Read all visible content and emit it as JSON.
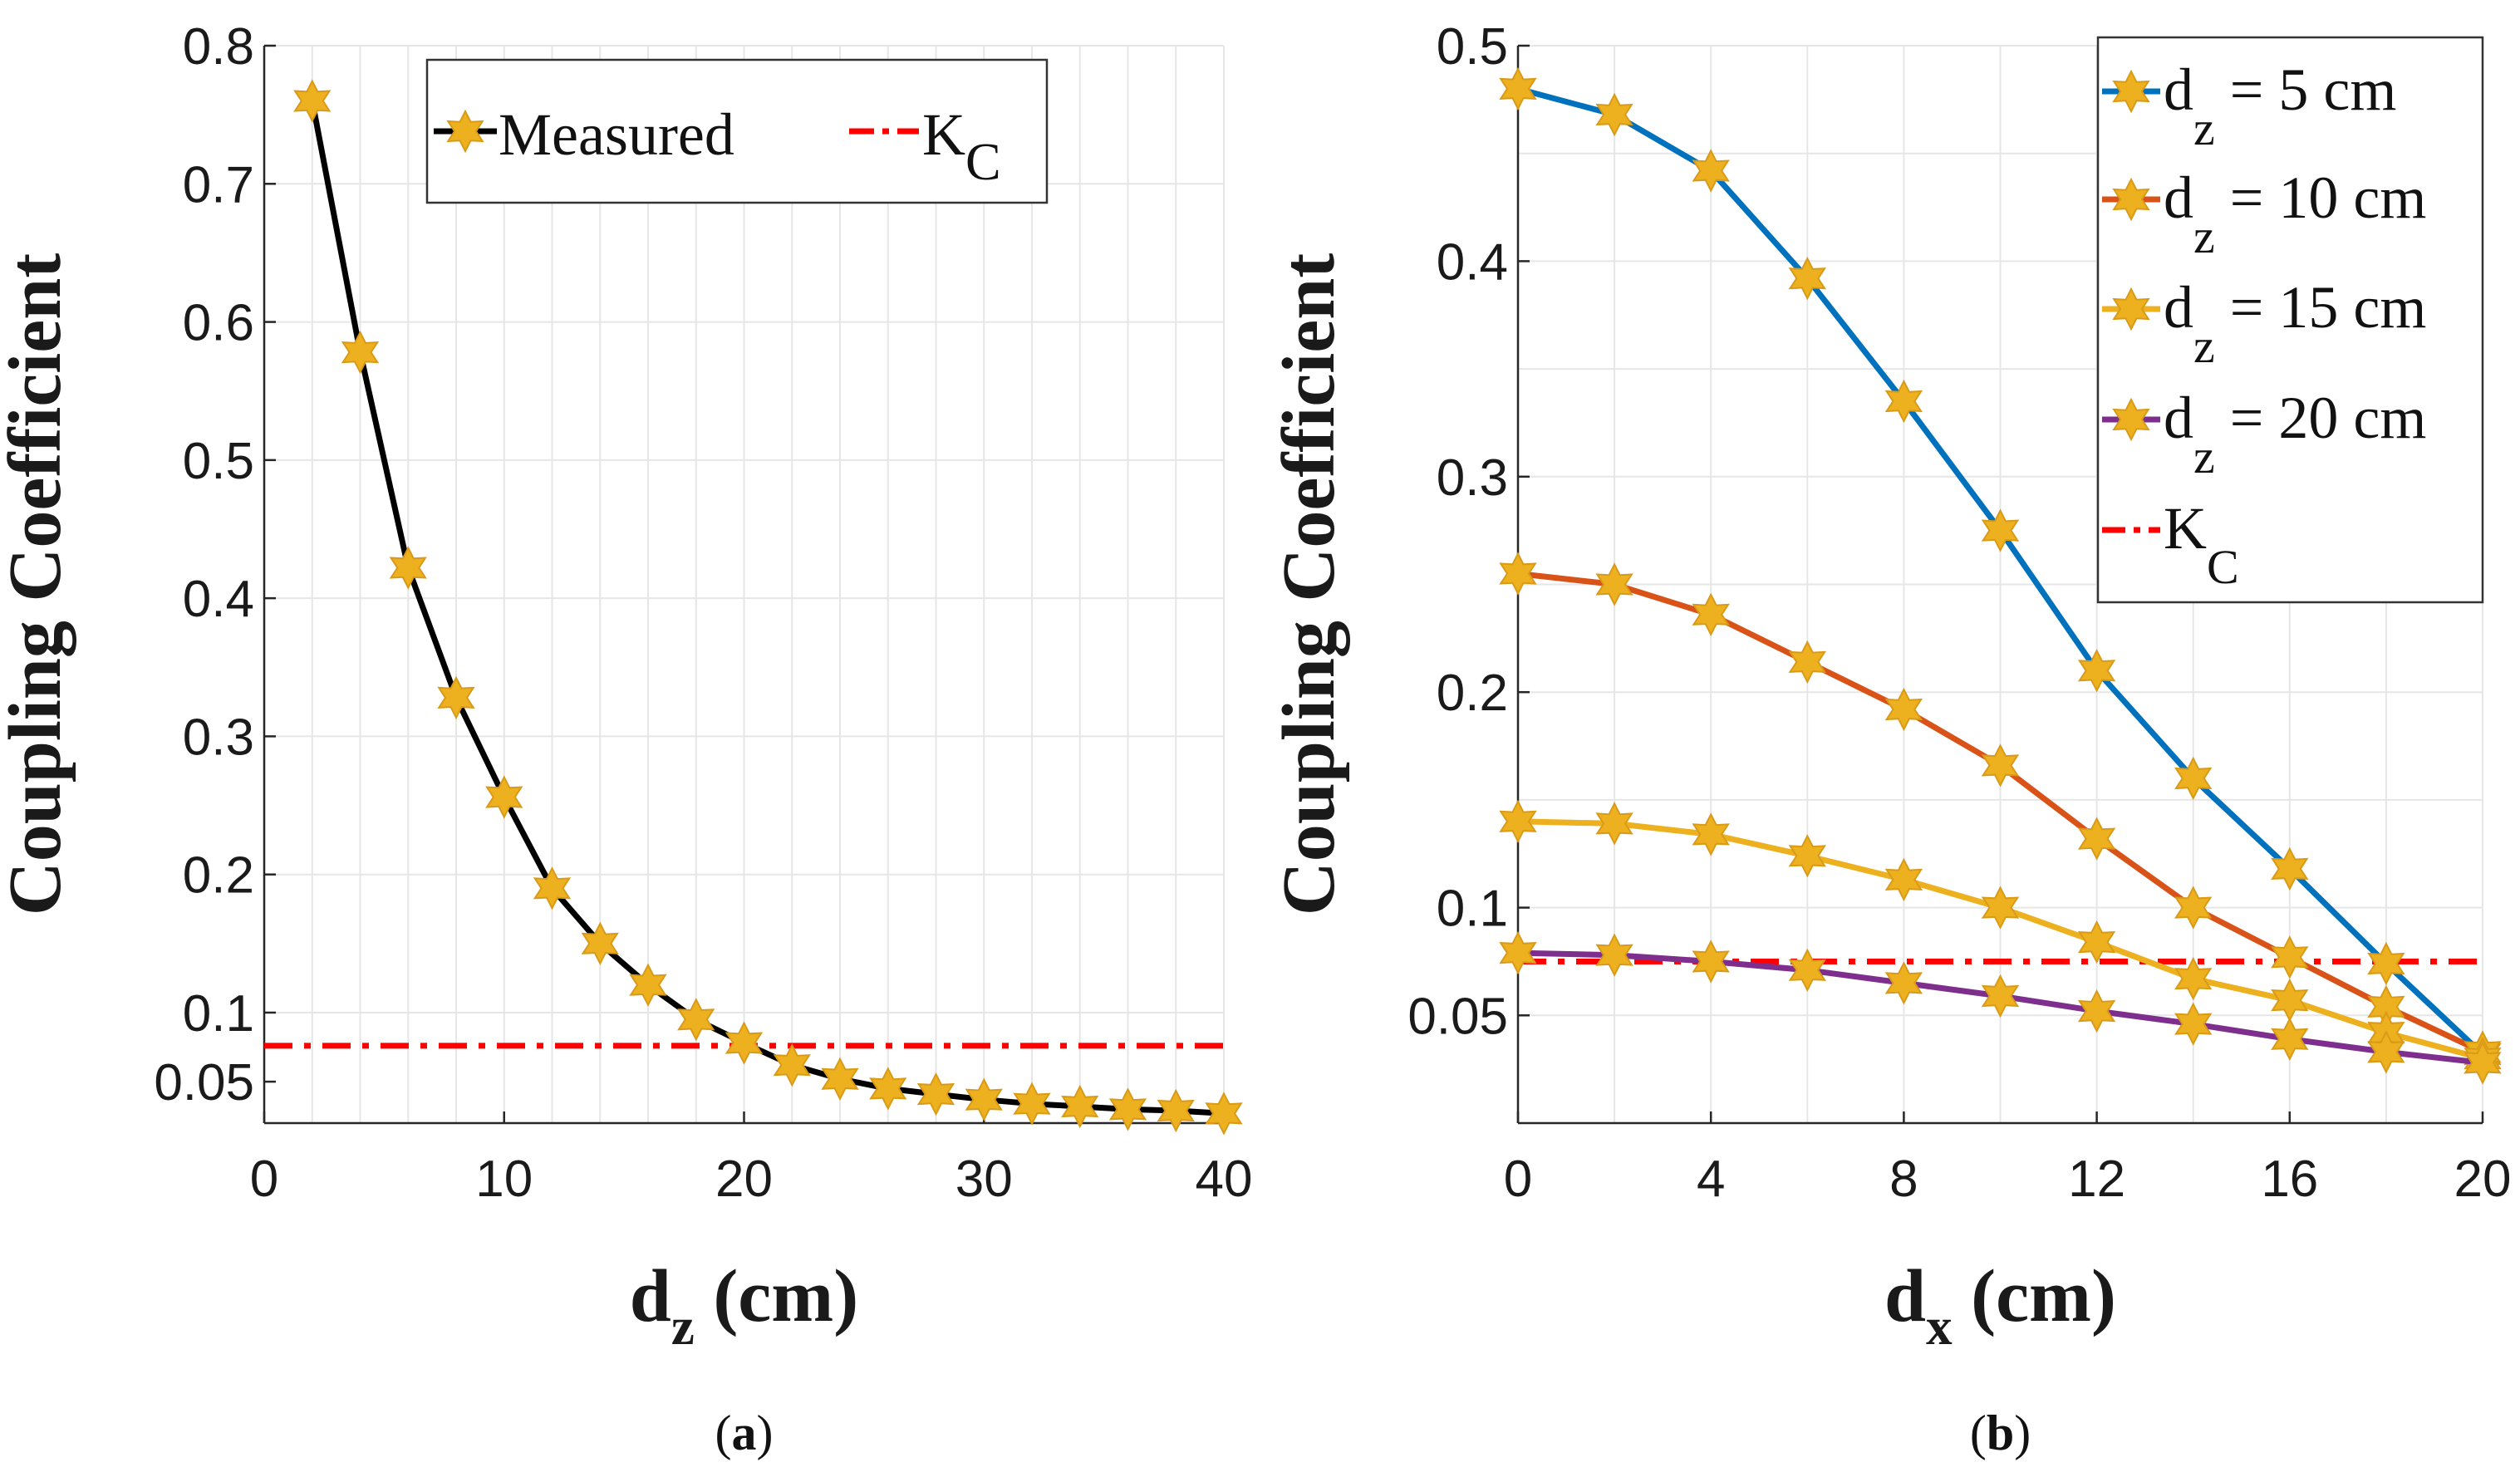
{
  "colors": {
    "measured": "#000000",
    "marker": "#EDB120",
    "marker_edge": "#D99A17",
    "kc": "#FF0000",
    "dz5": "#0072BD",
    "dz10": "#D95319",
    "dz15": "#EDB120",
    "dz20": "#7E2F8E",
    "grid": "#e6e6e6",
    "axis": "#262626"
  },
  "chart_data": [
    {
      "type": "line",
      "caption": {
        "open": "(",
        "letter": "a",
        "close": ")"
      },
      "xlabel": {
        "main": "d",
        "sub": "z",
        "rest": " (cm)"
      },
      "ylabel": "Coupling Coefficient",
      "xlim": [
        0,
        40
      ],
      "ylim": [
        0.02,
        0.8
      ],
      "xticks": [
        0,
        10,
        20,
        30,
        40
      ],
      "xtick_labels": [
        "0",
        "10",
        "20",
        "30",
        "40"
      ],
      "yticks": [
        0.05,
        0.1,
        0.2,
        0.3,
        0.4,
        0.5,
        0.6,
        0.7,
        0.8
      ],
      "ytick_labels": [
        "0.05",
        "0.1",
        "0.2",
        "0.3",
        "0.4",
        "0.5",
        "0.6",
        "0.7",
        "0.8"
      ],
      "grid_x": [
        0,
        2,
        4,
        6,
        8,
        10,
        12,
        14,
        16,
        18,
        20,
        22,
        24,
        26,
        28,
        30,
        32,
        34,
        36,
        38,
        40
      ],
      "grid_y": [
        0.1,
        0.2,
        0.3,
        0.4,
        0.5,
        0.6,
        0.7,
        0.8
      ],
      "legend": {
        "position": "top-center",
        "items": [
          {
            "label": "Measured",
            "sub": "",
            "style": "line-star",
            "colorKey": "measured"
          },
          {
            "label": "K",
            "sub": "C",
            "style": "dashdot",
            "colorKey": "kc"
          }
        ]
      },
      "series": [
        {
          "name": "Measured",
          "colorKey": "measured",
          "x": [
            2,
            4,
            6,
            8,
            10,
            12,
            14,
            16,
            18,
            20,
            22,
            24,
            26,
            28,
            30,
            32,
            34,
            36,
            38,
            40
          ],
          "values": [
            0.76,
            0.578,
            0.422,
            0.328,
            0.256,
            0.19,
            0.15,
            0.12,
            0.095,
            0.078,
            0.062,
            0.052,
            0.045,
            0.041,
            0.037,
            0.034,
            0.032,
            0.03,
            0.029,
            0.027
          ]
        }
      ],
      "hlines": [
        {
          "name": "K_C",
          "value": 0.076,
          "colorKey": "kc"
        }
      ]
    },
    {
      "type": "line",
      "caption": {
        "open": "(",
        "letter": "b",
        "close": ")"
      },
      "xlabel": {
        "main": "d",
        "sub": "x",
        "rest": " (cm)"
      },
      "ylabel": "Coupling Coefficient",
      "xlim": [
        0,
        20
      ],
      "ylim": [
        0,
        0.5
      ],
      "xticks": [
        0,
        4,
        8,
        12,
        16,
        20
      ],
      "xtick_labels": [
        "0",
        "4",
        "8",
        "12",
        "16",
        "20"
      ],
      "yticks": [
        0.05,
        0.1,
        0.2,
        0.3,
        0.4,
        0.5
      ],
      "ytick_labels": [
        "0.05",
        "0.1",
        "0.2",
        "0.3",
        "0.4",
        "0.5"
      ],
      "grid_x": [
        0,
        2,
        4,
        6,
        8,
        10,
        12,
        14,
        16,
        18,
        20
      ],
      "grid_y": [
        0.05,
        0.1,
        0.15,
        0.2,
        0.25,
        0.3,
        0.35,
        0.4,
        0.45,
        0.5
      ],
      "legend": {
        "position": "top-right",
        "items": [
          {
            "label": "d",
            "sub": "z",
            "rest": " = 5 cm",
            "style": "line-star",
            "colorKey": "dz5"
          },
          {
            "label": "d",
            "sub": "z",
            "rest": " = 10 cm",
            "style": "line-star",
            "colorKey": "dz10"
          },
          {
            "label": "d",
            "sub": "z",
            "rest": " = 15 cm",
            "style": "line-star",
            "colorKey": "dz15"
          },
          {
            "label": "d",
            "sub": "z",
            "rest": " = 20 cm",
            "style": "line-star",
            "colorKey": "dz20"
          },
          {
            "label": "K",
            "sub": "C",
            "rest": "",
            "style": "dashdot",
            "colorKey": "kc"
          }
        ]
      },
      "series": [
        {
          "name": "dz = 5 cm",
          "colorKey": "dz5",
          "x": [
            0,
            2,
            4,
            6,
            8,
            10,
            12,
            14,
            16,
            18,
            20
          ],
          "values": [
            0.48,
            0.468,
            0.442,
            0.392,
            0.335,
            0.275,
            0.21,
            0.16,
            0.118,
            0.074,
            0.032
          ]
        },
        {
          "name": "dz = 10 cm",
          "colorKey": "dz10",
          "x": [
            0,
            2,
            4,
            6,
            8,
            10,
            12,
            14,
            16,
            18,
            20
          ],
          "values": [
            0.255,
            0.25,
            0.236,
            0.214,
            0.192,
            0.166,
            0.132,
            0.1,
            0.077,
            0.054,
            0.033
          ]
        },
        {
          "name": "dz = 15 cm",
          "colorKey": "dz15",
          "x": [
            0,
            2,
            4,
            6,
            8,
            10,
            12,
            14,
            16,
            18,
            20
          ],
          "values": [
            0.14,
            0.139,
            0.134,
            0.124,
            0.113,
            0.1,
            0.084,
            0.067,
            0.057,
            0.042,
            0.03
          ]
        },
        {
          "name": "dz = 20 cm",
          "colorKey": "dz20",
          "x": [
            0,
            2,
            4,
            6,
            8,
            10,
            12,
            14,
            16,
            18,
            20
          ],
          "values": [
            0.079,
            0.078,
            0.075,
            0.071,
            0.065,
            0.059,
            0.052,
            0.046,
            0.039,
            0.033,
            0.028
          ]
        }
      ],
      "hlines": [
        {
          "name": "K_C",
          "value": 0.075,
          "colorKey": "kc"
        }
      ]
    }
  ]
}
